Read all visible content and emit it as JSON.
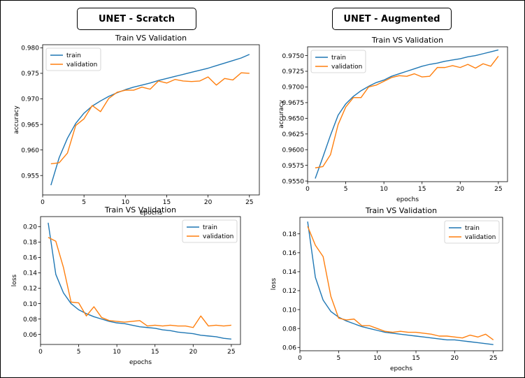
{
  "headers": {
    "left": "UNET - Scratch",
    "right": "UNET - Augmented"
  },
  "colors": {
    "train": "#1f77b4",
    "validation": "#ff7f0e"
  },
  "chart_data": [
    {
      "type": "line",
      "title": "Train VS Validation",
      "xlabel": "epochs",
      "ylabel": "accuracy",
      "xlim": [
        0,
        26.2
      ],
      "ylim": [
        0.9512,
        0.9806
      ],
      "xticks": [
        0,
        5,
        10,
        15,
        20,
        25
      ],
      "yticks": [
        0.955,
        0.96,
        0.965,
        0.97,
        0.975,
        0.98
      ],
      "ytick_labels": [
        "0.955",
        "0.960",
        "0.965",
        "0.970",
        "0.975",
        "0.980"
      ],
      "grid": false,
      "legend": "top-left",
      "x": [
        1,
        2,
        3,
        4,
        5,
        6,
        7,
        8,
        9,
        10,
        11,
        12,
        13,
        14,
        15,
        16,
        17,
        18,
        19,
        20,
        21,
        22,
        23,
        24,
        25
      ],
      "series": [
        {
          "name": "train",
          "color": "#1f77b4",
          "values": [
            0.9531,
            0.9585,
            0.9623,
            0.9652,
            0.9672,
            0.9686,
            0.9696,
            0.9705,
            0.9712,
            0.9718,
            0.9723,
            0.9727,
            0.9731,
            0.9736,
            0.974,
            0.9744,
            0.9748,
            0.9752,
            0.9756,
            0.976,
            0.9765,
            0.977,
            0.9775,
            0.978,
            0.9787
          ]
        },
        {
          "name": "validation",
          "color": "#ff7f0e",
          "values": [
            0.9573,
            0.9575,
            0.9594,
            0.9648,
            0.9661,
            0.9687,
            0.9675,
            0.9701,
            0.9713,
            0.9717,
            0.9717,
            0.9723,
            0.9719,
            0.9735,
            0.9731,
            0.9738,
            0.9735,
            0.9734,
            0.9735,
            0.9743,
            0.9727,
            0.974,
            0.9737,
            0.9751,
            0.975
          ]
        }
      ]
    },
    {
      "type": "line",
      "title": "Train VS Validation",
      "xlabel": "epochs",
      "ylabel": "accuracy",
      "xlim": [
        0,
        26.2
      ],
      "ylim": [
        0.9549,
        0.9764
      ],
      "xticks": [
        0,
        5,
        10,
        15,
        20,
        25
      ],
      "yticks": [
        0.955,
        0.9575,
        0.96,
        0.9625,
        0.965,
        0.9675,
        0.97,
        0.9725,
        0.975
      ],
      "ytick_labels": [
        "0.9550",
        "0.9575",
        "0.9600",
        "0.9625",
        "0.9650",
        "0.9675",
        "0.9700",
        "0.9725",
        "0.9750"
      ],
      "grid": false,
      "legend": "top-left",
      "x": [
        1,
        2,
        3,
        4,
        5,
        6,
        7,
        8,
        9,
        10,
        11,
        12,
        13,
        14,
        15,
        16,
        17,
        18,
        19,
        20,
        21,
        22,
        23,
        24,
        25
      ],
      "series": [
        {
          "name": "train",
          "color": "#1f77b4",
          "values": [
            0.9554,
            0.9588,
            0.9623,
            0.9655,
            0.9673,
            0.9685,
            0.9694,
            0.9701,
            0.9707,
            0.9711,
            0.9717,
            0.9721,
            0.9725,
            0.9729,
            0.9733,
            0.9736,
            0.9738,
            0.9741,
            0.9743,
            0.9745,
            0.9748,
            0.975,
            0.9753,
            0.9756,
            0.9759
          ]
        },
        {
          "name": "validation",
          "color": "#ff7f0e",
          "values": [
            0.9571,
            0.9573,
            0.9592,
            0.964,
            0.9668,
            0.9683,
            0.9683,
            0.97,
            0.9703,
            0.9709,
            0.9715,
            0.9718,
            0.9717,
            0.9721,
            0.9716,
            0.9717,
            0.9731,
            0.9731,
            0.9734,
            0.9731,
            0.9736,
            0.973,
            0.9737,
            0.9733,
            0.9749
          ]
        }
      ]
    },
    {
      "type": "line",
      "title": "Train VS Validation",
      "xlabel": "epochs",
      "ylabel": "loss",
      "xlim": [
        0,
        26.2
      ],
      "ylim": [
        0.047,
        0.213
      ],
      "xticks": [
        0,
        5,
        10,
        15,
        20,
        25
      ],
      "yticks": [
        0.06,
        0.08,
        0.1,
        0.12,
        0.14,
        0.16,
        0.18,
        0.2
      ],
      "ytick_labels": [
        "0.06",
        "0.08",
        "0.10",
        "0.12",
        "0.14",
        "0.16",
        "0.18",
        "0.20"
      ],
      "grid": false,
      "legend": "top-right",
      "x": [
        1,
        2,
        3,
        4,
        5,
        6,
        7,
        8,
        9,
        10,
        11,
        12,
        13,
        14,
        15,
        16,
        17,
        18,
        19,
        20,
        21,
        22,
        23,
        24,
        25
      ],
      "series": [
        {
          "name": "train",
          "color": "#1f77b4",
          "values": [
            0.205,
            0.138,
            0.114,
            0.1,
            0.092,
            0.087,
            0.083,
            0.08,
            0.077,
            0.075,
            0.074,
            0.072,
            0.07,
            0.069,
            0.068,
            0.066,
            0.065,
            0.063,
            0.062,
            0.061,
            0.059,
            0.058,
            0.057,
            0.055,
            0.054
          ]
        },
        {
          "name": "validation",
          "color": "#ff7f0e",
          "values": [
            0.186,
            0.181,
            0.147,
            0.102,
            0.101,
            0.084,
            0.096,
            0.082,
            0.078,
            0.077,
            0.076,
            0.077,
            0.078,
            0.071,
            0.072,
            0.071,
            0.072,
            0.071,
            0.071,
            0.069,
            0.084,
            0.071,
            0.072,
            0.071,
            0.072
          ]
        }
      ]
    },
    {
      "type": "line",
      "title": "Train VS Validation",
      "xlabel": "epochs",
      "ylabel": "loss",
      "xlim": [
        0,
        26.2
      ],
      "ylim": [
        0.0565,
        0.1975
      ],
      "xticks": [
        0,
        5,
        10,
        15,
        20,
        25
      ],
      "yticks": [
        0.06,
        0.08,
        0.1,
        0.12,
        0.14,
        0.16,
        0.18
      ],
      "ytick_labels": [
        "0.06",
        "0.08",
        "0.10",
        "0.12",
        "0.14",
        "0.16",
        "0.18"
      ],
      "grid": false,
      "legend": "top-right",
      "x": [
        1,
        2,
        3,
        4,
        5,
        6,
        7,
        8,
        9,
        10,
        11,
        12,
        13,
        14,
        15,
        16,
        17,
        18,
        19,
        20,
        21,
        22,
        23,
        24,
        25
      ],
      "series": [
        {
          "name": "train",
          "color": "#1f77b4",
          "values": [
            0.193,
            0.134,
            0.11,
            0.098,
            0.092,
            0.088,
            0.085,
            0.082,
            0.08,
            0.078,
            0.076,
            0.075,
            0.074,
            0.073,
            0.072,
            0.071,
            0.07,
            0.069,
            0.068,
            0.068,
            0.067,
            0.066,
            0.065,
            0.064,
            0.063
          ]
        },
        {
          "name": "validation",
          "color": "#ff7f0e",
          "values": [
            0.188,
            0.168,
            0.156,
            0.114,
            0.091,
            0.089,
            0.09,
            0.083,
            0.083,
            0.08,
            0.077,
            0.076,
            0.077,
            0.076,
            0.076,
            0.075,
            0.074,
            0.072,
            0.072,
            0.071,
            0.07,
            0.073,
            0.071,
            0.074,
            0.068
          ]
        }
      ]
    }
  ]
}
